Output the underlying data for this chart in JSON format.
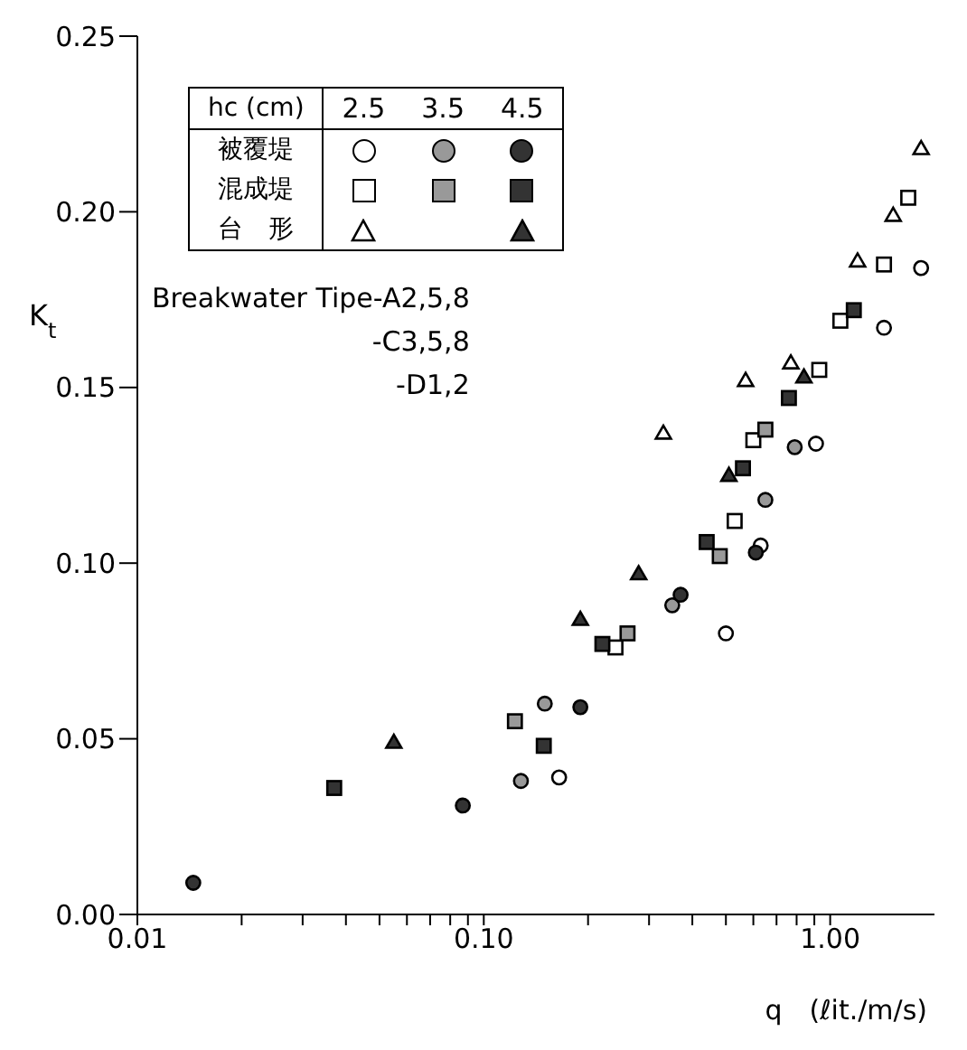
{
  "chart_data": {
    "type": "scatter",
    "xlabel": "q　(ℓit./m/s)",
    "ylabel": "K$_{t}$",
    "log": "x",
    "xlim": [
      0.01,
      2
    ],
    "ylim": [
      0,
      0.25
    ],
    "xticks": [
      {
        "value": 0.01,
        "label": "0.01"
      },
      {
        "value": 0.02,
        "label": null
      },
      {
        "value": 0.03,
        "label": null
      },
      {
        "value": 0.04,
        "label": null
      },
      {
        "value": 0.05,
        "label": null
      },
      {
        "value": 0.06,
        "label": null
      },
      {
        "value": 0.07,
        "label": null
      },
      {
        "value": 0.08,
        "label": null
      },
      {
        "value": 0.09,
        "label": null
      },
      {
        "value": 0.1,
        "label": "0.10"
      },
      {
        "value": 0.2,
        "label": null
      },
      {
        "value": 0.3,
        "label": null
      },
      {
        "value": 0.4,
        "label": null
      },
      {
        "value": 0.5,
        "label": null
      },
      {
        "value": 0.6,
        "label": null
      },
      {
        "value": 0.7,
        "label": null
      },
      {
        "value": 0.8,
        "label": null
      },
      {
        "value": 0.9,
        "label": null
      },
      {
        "value": 1,
        "label": "1.00"
      }
    ],
    "yticks": [
      {
        "value": 0,
        "label": "0.00"
      },
      {
        "value": 0.05,
        "label": "0.05"
      },
      {
        "value": 0.1,
        "label": "0.10"
      },
      {
        "value": 0.15,
        "label": "0.15"
      },
      {
        "value": 0.2,
        "label": "0.20"
      },
      {
        "value": 0.25,
        "label": "0.25"
      }
    ],
    "legend_title": "hc (cm)",
    "annotations": [
      "2.5",
      "3.5",
      "4.5",
      "被覆堤",
      "混成堤",
      "台　形",
      "Breakwater Tipe-A2,5,8",
      "-C3,5,8",
      "-D1,2"
    ],
    "series": [
      {
        "marker": "circle",
        "color": "#ffffff",
        "x": [
          1.83,
          1.43,
          0.91,
          0.63,
          0.5,
          0.165
        ],
        "values": [
          0.184,
          0.167,
          0.134,
          0.105,
          0.08,
          0.039
        ]
      },
      {
        "marker": "circle",
        "color": "#999999",
        "x": [
          0.79,
          0.65,
          0.35,
          0.15,
          0.128
        ],
        "values": [
          0.133,
          0.118,
          0.088,
          0.06,
          0.038
        ]
      },
      {
        "marker": "circle",
        "color": "#333333",
        "x": [
          0.61,
          0.37,
          0.19,
          0.087,
          0.0145
        ],
        "values": [
          0.103,
          0.091,
          0.059,
          0.031,
          0.009
        ]
      },
      {
        "marker": "square",
        "color": "#ffffff",
        "x": [
          1.68,
          1.43,
          1.07,
          0.93,
          0.6,
          0.53,
          0.24
        ],
        "values": [
          0.204,
          0.185,
          0.169,
          0.155,
          0.135,
          0.112,
          0.076
        ]
      },
      {
        "marker": "square",
        "color": "#999999",
        "x": [
          0.65,
          0.48,
          0.26,
          0.123
        ],
        "values": [
          0.138,
          0.102,
          0.08,
          0.055
        ]
      },
      {
        "marker": "square",
        "color": "#333333",
        "x": [
          1.17,
          0.76,
          0.56,
          0.44,
          0.22,
          0.149,
          0.037
        ],
        "values": [
          0.172,
          0.147,
          0.127,
          0.106,
          0.077,
          0.048,
          0.036
        ]
      },
      {
        "marker": "triangle",
        "color": "#ffffff",
        "x": [
          1.83,
          1.52,
          1.2,
          0.77,
          0.57,
          0.33
        ],
        "values": [
          0.218,
          0.199,
          0.186,
          0.157,
          0.152,
          0.137
        ]
      },
      {
        "marker": "triangle",
        "color": "#333333",
        "x": [
          0.84,
          0.51,
          0.28,
          0.19,
          0.055
        ],
        "values": [
          0.153,
          0.125,
          0.097,
          0.084,
          0.049
        ]
      }
    ]
  }
}
